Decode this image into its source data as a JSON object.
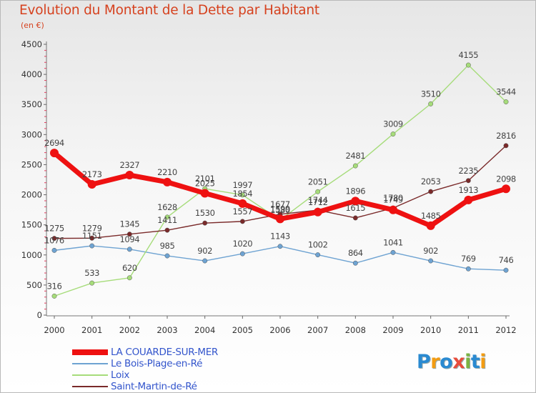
{
  "header": {
    "title": "Evolution du Montant de la Dette par Habitant",
    "unit": "(en €)"
  },
  "logo": {
    "text": "Proxiti",
    "colors": [
      "#2a8ad1",
      "#f39c12",
      "#2a8ad1",
      "#e74c3c",
      "#7cb342",
      "#2a8ad1",
      "#f39c12"
    ]
  },
  "colors": {
    "title": "#d6421f",
    "legend_text": "#3355cc",
    "grid_tick": "#e0405f"
  },
  "chart_data": {
    "type": "line",
    "title": "Evolution du Montant de la Dette par Habitant",
    "ylabel": "(en €)",
    "xlabel": "",
    "x": [
      "2000",
      "2001",
      "2002",
      "2003",
      "2004",
      "2005",
      "2006",
      "2007",
      "2008",
      "2009",
      "2010",
      "2011",
      "2012"
    ],
    "ylim": [
      0,
      4500
    ],
    "yticks": [
      0,
      500,
      1000,
      1500,
      2000,
      2500,
      3000,
      3500,
      4000,
      4500
    ],
    "grid": false,
    "legend_position": "bottom-left",
    "series": [
      {
        "name": "LA COUARDE-SUR-MER",
        "color": "#ee1111",
        "emphasis": true,
        "values": [
          2694,
          2173,
          2327,
          2210,
          2025,
          1854,
          1599,
          1712,
          1896,
          1749,
          1485,
          1913,
          2098
        ]
      },
      {
        "name": "Le Bois-Plage-en-Ré",
        "color": "#6ea3d2",
        "emphasis": false,
        "values": [
          1076,
          1151,
          1094,
          985,
          902,
          1020,
          1143,
          1002,
          864,
          1041,
          902,
          769,
          746
        ]
      },
      {
        "name": "Loix",
        "color": "#a6dc7a",
        "emphasis": false,
        "values": [
          316,
          533,
          620,
          1628,
          2101,
          1997,
          1580,
          2051,
          2481,
          3009,
          3510,
          4155,
          3544
        ]
      },
      {
        "name": "Saint-Martin-de-Ré",
        "color": "#7a2a2a",
        "emphasis": false,
        "values": [
          1275,
          1279,
          1345,
          1411,
          1530,
          1557,
          1677,
          1744,
          1615,
          1780,
          2053,
          2235,
          2816
        ]
      }
    ]
  }
}
